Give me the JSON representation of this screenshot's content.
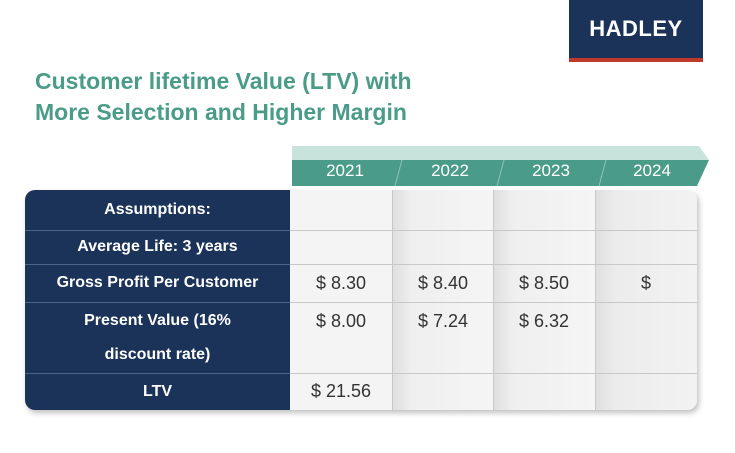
{
  "logo": {
    "text": "HADLEY"
  },
  "title": {
    "line1": "Customer lifetime Value (LTV) with",
    "line2": "More Selection and Higher Margin"
  },
  "colors": {
    "navy": "#1b3259",
    "teal": "#4a9b88",
    "header_band": "#4a9b88",
    "accent_red": "#c0392b"
  },
  "table": {
    "years": [
      "2021",
      "2022",
      "2023",
      "2024"
    ],
    "rows": [
      {
        "label": "Assumptions:",
        "values": [
          "",
          "",
          "",
          ""
        ]
      },
      {
        "label": "Average Life: 3 years",
        "values": [
          "",
          "",
          "",
          ""
        ]
      },
      {
        "label": "Gross Profit Per Customer",
        "values": [
          "$ 8.30",
          "$ 8.40",
          "$ 8.50",
          "$"
        ]
      },
      {
        "label_line1": "Present Value (16%",
        "label_line2": "discount rate)",
        "values": [
          "$ 8.00",
          "$ 7.24",
          "$ 6.32",
          ""
        ]
      },
      {
        "label": "LTV",
        "values": [
          "$ 21.56",
          "",
          "",
          ""
        ]
      }
    ]
  }
}
